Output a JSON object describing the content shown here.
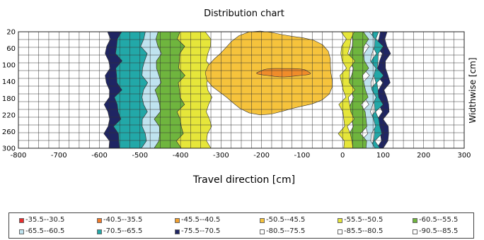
{
  "chart_data": {
    "type": "heatmap",
    "title": "Distribution chart",
    "xlabel": "Travel direction [cm]",
    "ylabel": "Widthwise [cm]",
    "xlim": [
      -800,
      300
    ],
    "ylim": [
      300,
      20
    ],
    "x_ticks": [
      "-800",
      "-700",
      "-600",
      "-500",
      "-400",
      "-300",
      "-200",
      "-100",
      "0",
      "100",
      "200",
      "300"
    ],
    "y_ticks": [
      "20",
      "60",
      "100",
      "140",
      "180",
      "220",
      "260",
      "300"
    ],
    "grid": true,
    "bands": [
      {
        "range": "-75.5--70.5",
        "x_inner": [
          -555,
          90
        ],
        "x_outer": [
          -580,
          110
        ],
        "color": "#1f2563"
      },
      {
        "range": "-70.5--65.5",
        "x_inner": [
          -490,
          75
        ],
        "x_outer": [
          -555,
          90
        ],
        "color": "#22a8a8"
      },
      {
        "range": "-65.5--60.5",
        "x_inner": [
          -455,
          55
        ],
        "x_outer": [
          -490,
          75
        ],
        "color": "#bfe3ef"
      },
      {
        "range": "-60.5--55.5",
        "x_inner": [
          -400,
          20
        ],
        "x_outer": [
          -455,
          55
        ],
        "color": "#6fb53e"
      },
      {
        "range": "-55.5--50.5",
        "x_inner": [
          -330,
          0
        ],
        "x_outer": [
          -400,
          20
        ],
        "color": "#e6e63a"
      },
      {
        "range": "-50.5--45.5",
        "center": [
          -175,
          118
        ],
        "radius": [
          155,
          98
        ],
        "color": "#f6c33c"
      },
      {
        "range": "-45.5--40.5",
        "center": [
          -145,
          118
        ],
        "radius": [
          65,
          10
        ],
        "color": "#f08c2a"
      }
    ],
    "legend": [
      {
        "label": "-35.5--30.5",
        "color": "#e82c2c"
      },
      {
        "label": "-40.5--35.5",
        "color": "#f07a2a"
      },
      {
        "label": "-45.5--40.5",
        "color": "#f0a030"
      },
      {
        "label": "-50.5--45.5",
        "color": "#f6c33c"
      },
      {
        "label": "-55.5--50.5",
        "color": "#e6e63a"
      },
      {
        "label": "-60.5--55.5",
        "color": "#6fb53e"
      },
      {
        "label": "-65.5--60.5",
        "color": "#bfe3ef"
      },
      {
        "label": "-70.5--65.5",
        "color": "#22a8a8"
      },
      {
        "label": "-75.5--70.5",
        "color": "#1f2563"
      },
      {
        "label": "-80.5--75.5",
        "color": "#ffffff"
      },
      {
        "label": "-85.5--80.5",
        "color": "#ffffff"
      },
      {
        "label": "-90.5--85.5",
        "color": "#ffffff"
      }
    ]
  }
}
